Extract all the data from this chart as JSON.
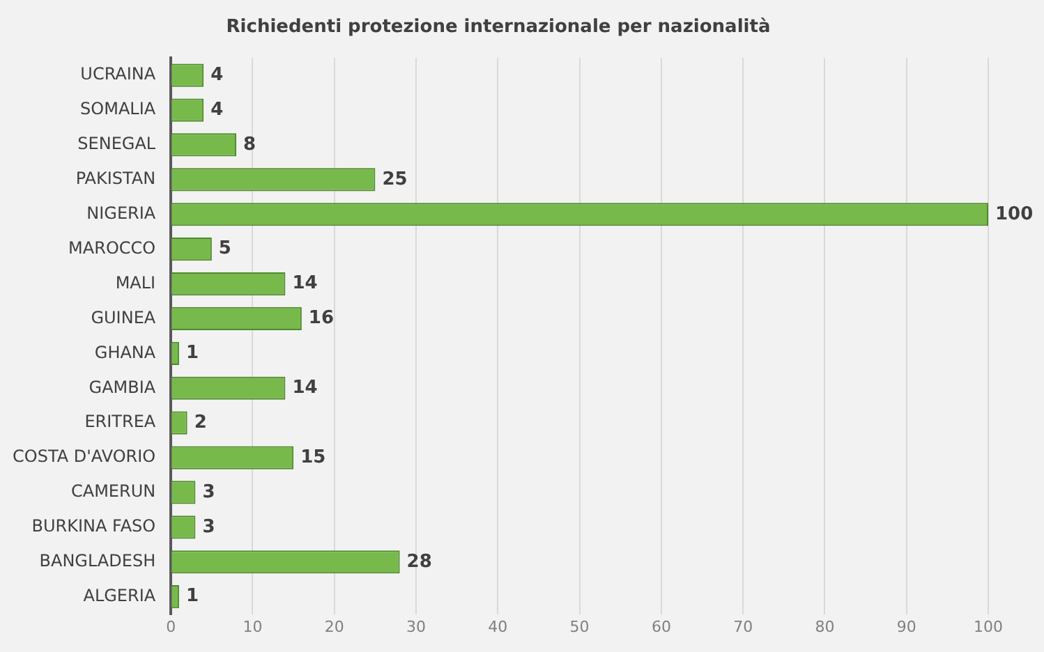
{
  "chart_data": {
    "type": "bar",
    "orientation": "horizontal",
    "title": "Richiedenti protezione internazionale per nazionalità",
    "categories": [
      "UCRAINA",
      "SOMALIA",
      "SENEGAL",
      "PAKISTAN",
      "NIGERIA",
      "MAROCCO",
      "MALI",
      "GUINEA",
      "GHANA",
      "GAMBIA",
      "ERITREA",
      "COSTA D'AVORIO",
      "CAMERUN",
      "BURKINA FASO",
      "BANGLADESH",
      "ALGERIA"
    ],
    "values": [
      4,
      4,
      8,
      25,
      100,
      5,
      14,
      16,
      1,
      14,
      2,
      15,
      3,
      3,
      28,
      1
    ],
    "color": "#78b94c",
    "xlim": [
      0,
      100
    ],
    "xticks": [
      0,
      10,
      20,
      30,
      40,
      50,
      60,
      70,
      80,
      90,
      100
    ],
    "grid": "x",
    "data_labels": true
  }
}
